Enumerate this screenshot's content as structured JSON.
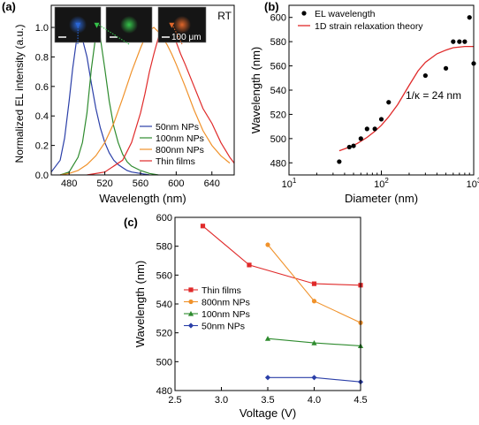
{
  "chart_data": [
    {
      "panel_label": "(a)",
      "type": "line",
      "xlabel": "Wavelength (nm)",
      "ylabel": "Normalized EL intensity (a.u.)",
      "xlim": [
        460,
        665
      ],
      "ylim": [
        0,
        1.15
      ],
      "xticks": [
        "480",
        "520",
        "560",
        "600",
        "640"
      ],
      "yticks": [
        "0.0",
        "0.2",
        "0.4",
        "0.6",
        "0.8",
        "1.0"
      ],
      "annotation": "RT",
      "scale_label": "100 μm",
      "legend_position": "lower-right",
      "insets": [
        {
          "color": "#2a66d6",
          "peak_x": 490
        },
        {
          "color": "#35c24a",
          "peak_x": 511
        },
        {
          "color": "#e0662a",
          "peak_x": 595
        }
      ],
      "series": [
        {
          "name": "50nm NPs",
          "color": "#2b3fa8",
          "x": [
            460,
            470,
            475,
            480,
            484,
            488,
            490,
            492,
            495,
            500,
            505,
            510,
            515,
            520,
            525,
            530,
            535,
            540,
            545,
            550,
            560,
            570
          ],
          "y": [
            0.02,
            0.1,
            0.25,
            0.5,
            0.72,
            0.9,
            1.0,
            0.98,
            0.92,
            0.8,
            0.62,
            0.45,
            0.32,
            0.22,
            0.15,
            0.1,
            0.07,
            0.05,
            0.03,
            0.02,
            0.01,
            0.0
          ]
        },
        {
          "name": "100nm NPs",
          "color": "#2e8b2e",
          "x": [
            470,
            480,
            490,
            495,
            500,
            505,
            510,
            512,
            515,
            520,
            525,
            530,
            535,
            540,
            545,
            550,
            560,
            570,
            580
          ],
          "y": [
            0.0,
            0.02,
            0.12,
            0.22,
            0.42,
            0.72,
            0.95,
            1.0,
            0.93,
            0.72,
            0.5,
            0.33,
            0.22,
            0.14,
            0.09,
            0.06,
            0.03,
            0.01,
            0.0
          ]
        },
        {
          "name": "800nm NPs",
          "color": "#f0922b",
          "x": [
            470,
            480,
            490,
            500,
            510,
            520,
            530,
            540,
            550,
            560,
            565,
            570,
            575,
            580,
            585,
            590,
            595,
            600,
            610,
            620,
            630,
            640,
            650,
            660
          ],
          "y": [
            0.0,
            0.01,
            0.03,
            0.07,
            0.13,
            0.22,
            0.35,
            0.52,
            0.7,
            0.86,
            0.93,
            0.98,
            1.0,
            0.97,
            0.93,
            0.88,
            0.82,
            0.75,
            0.6,
            0.44,
            0.3,
            0.2,
            0.13,
            0.08
          ]
        },
        {
          "name": "Thin films",
          "color": "#e02a2a",
          "x": [
            500,
            520,
            540,
            550,
            560,
            565,
            570,
            575,
            580,
            585,
            590,
            595,
            600,
            605,
            610,
            620,
            630,
            640,
            650,
            660,
            665
          ],
          "y": [
            0.0,
            0.02,
            0.1,
            0.22,
            0.42,
            0.55,
            0.7,
            0.82,
            0.93,
            0.98,
            1.0,
            0.97,
            0.9,
            0.82,
            0.75,
            0.6,
            0.45,
            0.35,
            0.22,
            0.12,
            0.08
          ]
        }
      ]
    },
    {
      "panel_label": "(b)",
      "type": "scatter",
      "xlabel": "Diameter (nm)",
      "ylabel": "Wavelength (nm)",
      "xscale": "log",
      "xlim": [
        10,
        1000
      ],
      "ylim": [
        470,
        610
      ],
      "xticks": [
        "10",
        "100",
        "1000"
      ],
      "yticks": [
        "480",
        "500",
        "520",
        "540",
        "560",
        "580",
        "600"
      ],
      "annotation": "1/κ = 24 nm",
      "legend_position": "top-left",
      "series": [
        {
          "name": "EL wavelength",
          "color": "#000000",
          "x": [
            35,
            45,
            50,
            60,
            70,
            85,
            100,
            120,
            300,
            500,
            600,
            700,
            800,
            900,
            1000
          ],
          "y": [
            481,
            493,
            494,
            500,
            508,
            508,
            516,
            530,
            552,
            558,
            580,
            580,
            580,
            600,
            562
          ]
        },
        {
          "name": "1D strain relaxation theory",
          "color": "#e02a2a",
          "x": [
            35,
            45,
            55,
            70,
            85,
            100,
            120,
            150,
            200,
            250,
            300,
            400,
            500,
            600,
            800,
            1000
          ],
          "y": [
            490,
            493,
            496,
            501,
            506,
            511,
            518,
            528,
            544,
            556,
            563,
            570,
            573,
            575,
            576,
            576
          ]
        }
      ]
    },
    {
      "panel_label": "(c)",
      "type": "line",
      "xlabel": "Voltage (V)",
      "ylabel": "Wavelength (nm)",
      "xlim": [
        2.5,
        4.5
      ],
      "ylim": [
        480,
        600
      ],
      "xticks": [
        "2.5",
        "3.0",
        "3.5",
        "4.0",
        "4.5"
      ],
      "yticks": [
        "480",
        "500",
        "520",
        "540",
        "560",
        "580",
        "600"
      ],
      "legend_position": "left",
      "series": [
        {
          "name": "Thin films",
          "color": "#e02a2a",
          "marker": "square",
          "x": [
            2.8,
            3.3,
            4.0,
            4.5
          ],
          "y": [
            594,
            567,
            554,
            553
          ]
        },
        {
          "name": "800nm NPs",
          "color": "#f0922b",
          "marker": "circle",
          "x": [
            3.5,
            4.0,
            4.5
          ],
          "y": [
            581,
            542,
            527
          ]
        },
        {
          "name": "100nm NPs",
          "color": "#2e8b2e",
          "marker": "triangle",
          "x": [
            3.5,
            4.0,
            4.5
          ],
          "y": [
            516,
            513,
            511
          ]
        },
        {
          "name": "50nm NPs",
          "color": "#2b3fa8",
          "marker": "diamond",
          "x": [
            3.5,
            4.0,
            4.5
          ],
          "y": [
            489,
            489,
            486
          ]
        }
      ]
    }
  ]
}
